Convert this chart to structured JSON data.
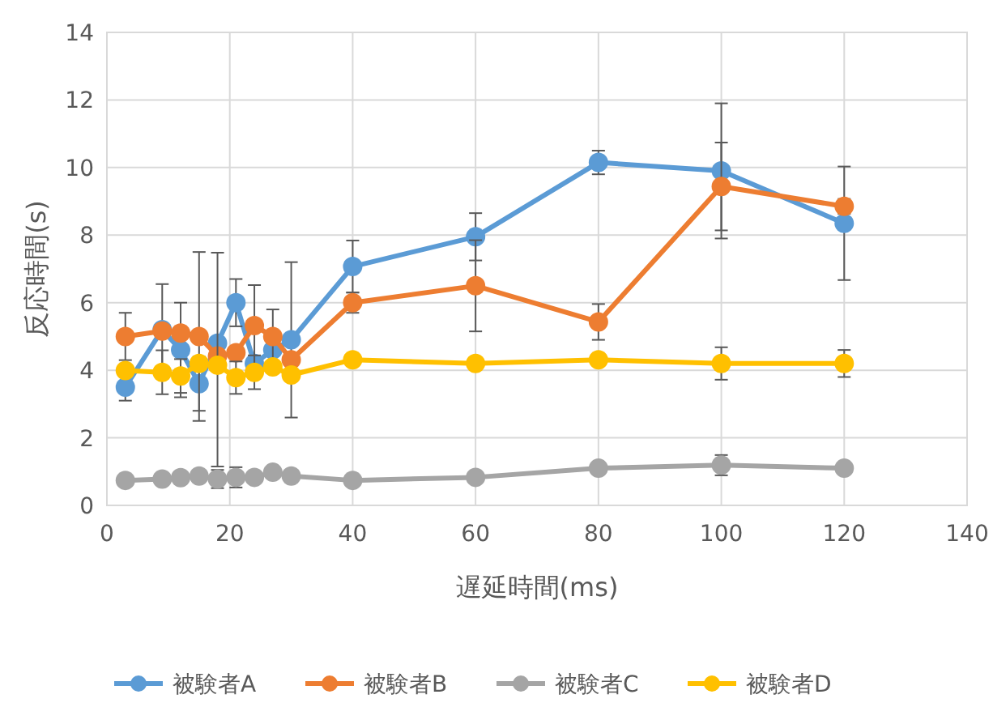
{
  "chart_data": {
    "type": "line",
    "xlabel": "遅延時間(ms)",
    "ylabel": "反応時間(s)",
    "x": [
      3,
      9,
      12,
      15,
      18,
      21,
      24,
      27,
      30,
      40,
      60,
      80,
      100,
      120
    ],
    "series": [
      {
        "name": "被験者A",
        "color": "#5b9bd5",
        "values": [
          3.5,
          5.2,
          4.6,
          3.6,
          4.8,
          6.0,
          4.2,
          4.6,
          4.9,
          7.07,
          7.95,
          10.15,
          9.9,
          8.35
        ],
        "errors": [
          0.4,
          1.35,
          1.4,
          0.8,
          null,
          0.7,
          null,
          null,
          2.3,
          0.77,
          0.7,
          0.35,
          2.0,
          1.68
        ]
      },
      {
        "name": "被験者B",
        "color": "#ed7d31",
        "values": [
          5.0,
          5.16,
          5.1,
          5.0,
          4.42,
          4.52,
          5.32,
          5.0,
          4.31,
          6.0,
          6.5,
          5.43,
          9.44,
          8.85
        ],
        "errors": [
          0.7,
          null,
          null,
          2.5,
          null,
          null,
          1.2,
          0.8,
          null,
          0.3,
          1.35,
          0.53,
          1.3,
          0.22
        ]
      },
      {
        "name": "被験者C",
        "color": "#a5a5a5",
        "values": [
          0.74,
          0.78,
          0.82,
          0.87,
          0.78,
          0.83,
          0.83,
          0.98,
          0.87,
          0.74,
          0.83,
          1.1,
          1.19,
          1.1
        ],
        "errors": [
          null,
          null,
          null,
          null,
          0.27,
          0.3,
          null,
          null,
          null,
          null,
          null,
          0.15,
          0.3,
          null
        ]
      },
      {
        "name": "被験者D",
        "color": "#ffc000",
        "values": [
          3.99,
          3.94,
          3.83,
          4.2,
          4.15,
          3.78,
          3.94,
          4.1,
          3.86,
          4.31,
          4.2,
          4.31,
          4.2,
          4.2
        ],
        "errors": [
          null,
          0.65,
          0.5,
          null,
          [
            1.15,
            7.48
          ],
          0.48,
          0.5,
          null,
          null,
          null,
          null,
          null,
          0.48,
          0.4
        ]
      }
    ],
    "xlim": [
      0,
      140
    ],
    "xticks": [
      0,
      20,
      40,
      60,
      80,
      100,
      120,
      140
    ],
    "ylim": [
      0,
      14
    ],
    "yticks": [
      0,
      2,
      4,
      6,
      8,
      10,
      12,
      14
    ],
    "grid": true,
    "legend": "bottom",
    "marker": "circle",
    "line_style": "solid"
  }
}
